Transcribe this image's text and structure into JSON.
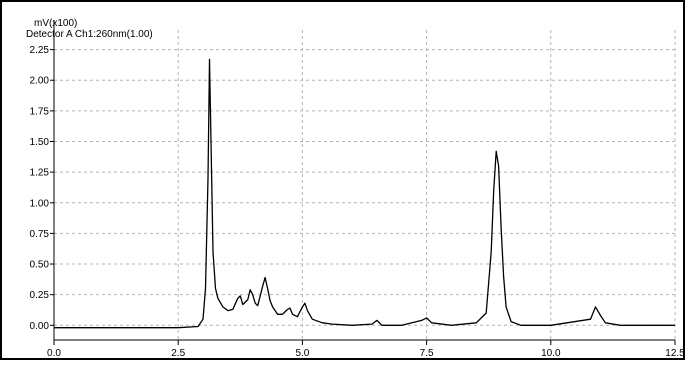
{
  "chart_data": {
    "type": "line",
    "unit_label": "mV(x100)",
    "series_label": "Detector A Ch1:260nm(1.00)",
    "xlim": [
      0,
      12.5
    ],
    "ylim": [
      -0.12,
      2.41
    ],
    "x_ticks": [
      0.0,
      2.5,
      5.0,
      7.5,
      10.0,
      12.5
    ],
    "x_tick_labels": [
      "0.0",
      "2.5",
      "5.0",
      "7.5",
      "10.0",
      "12.5"
    ],
    "y_ticks": [
      0.0,
      0.25,
      0.5,
      0.75,
      1.0,
      1.25,
      1.5,
      1.75,
      2.0,
      2.25
    ],
    "y_tick_labels": [
      "0.00",
      "0.25",
      "0.50",
      "0.75",
      "1.00",
      "1.25",
      "1.50",
      "1.75",
      "2.00",
      "2.25"
    ],
    "grid": true,
    "colors": {
      "trace": "#000000",
      "axes": "#000000",
      "grid": "#b4b4b4",
      "frame": "#000000"
    },
    "series": [
      {
        "x": [
          0.0,
          2.5,
          2.9,
          3.0,
          3.05,
          3.1,
          3.13,
          3.16,
          3.2,
          3.25,
          3.3,
          3.4,
          3.5,
          3.6,
          3.7,
          3.75,
          3.8,
          3.9,
          3.95,
          4.0,
          4.05,
          4.1,
          4.2,
          4.25,
          4.3,
          4.35,
          4.4,
          4.5,
          4.6,
          4.7,
          4.75,
          4.8,
          4.9,
          5.0,
          5.05,
          5.1,
          5.2,
          5.4,
          5.6,
          6.0,
          6.4,
          6.5,
          6.6,
          7.0,
          7.4,
          7.5,
          7.6,
          8.0,
          8.5,
          8.7,
          8.8,
          8.85,
          8.9,
          8.95,
          9.0,
          9.05,
          9.1,
          9.2,
          9.4,
          10.0,
          10.8,
          10.9,
          11.0,
          11.1,
          11.4,
          12.0,
          12.5
        ],
        "y": [
          -0.02,
          -0.02,
          -0.01,
          0.05,
          0.3,
          1.2,
          2.17,
          1.5,
          0.6,
          0.3,
          0.22,
          0.15,
          0.12,
          0.13,
          0.22,
          0.24,
          0.17,
          0.21,
          0.29,
          0.25,
          0.18,
          0.16,
          0.32,
          0.39,
          0.3,
          0.2,
          0.15,
          0.09,
          0.09,
          0.13,
          0.14,
          0.09,
          0.07,
          0.15,
          0.18,
          0.12,
          0.05,
          0.02,
          0.01,
          0.0,
          0.01,
          0.04,
          0.0,
          0.0,
          0.04,
          0.06,
          0.02,
          0.0,
          0.02,
          0.1,
          0.6,
          1.1,
          1.42,
          1.3,
          0.8,
          0.4,
          0.15,
          0.03,
          0.0,
          0.0,
          0.05,
          0.15,
          0.08,
          0.02,
          0.0,
          0.0,
          0.0
        ]
      }
    ]
  }
}
